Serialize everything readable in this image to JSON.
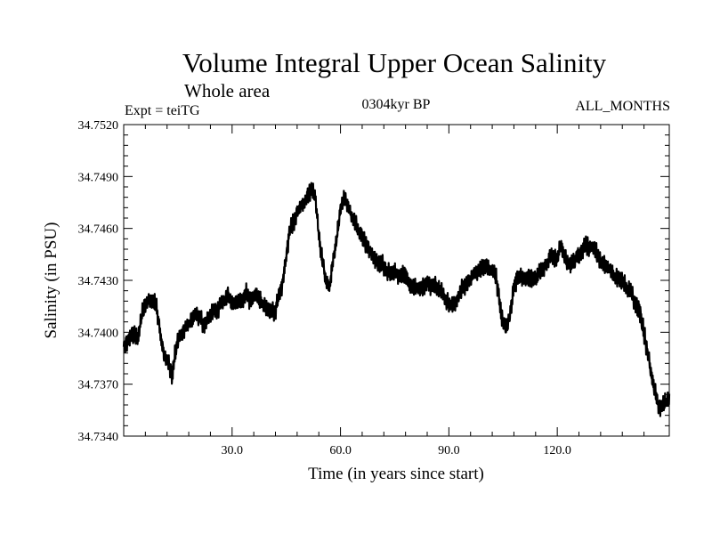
{
  "chart_data": {
    "type": "line",
    "title": "Volume Integral Upper Ocean Salinity",
    "subtitle": "Whole area",
    "experiment": "Expt = teiTG",
    "period": "0304kyr BP",
    "months": "ALL_MONTHS",
    "xlabel": "Time (in years since start)",
    "ylabel": "Salinity (in PSU)",
    "xlim": [
      0,
      151
    ],
    "ylim": [
      34.734,
      34.752
    ],
    "x_ticks": [
      30,
      60,
      90,
      120
    ],
    "x_tick_labels": [
      "30.0",
      "60.0",
      "90.0",
      "120.0"
    ],
    "y_ticks": [
      34.734,
      34.737,
      34.74,
      34.743,
      34.746,
      34.749,
      34.752
    ],
    "y_tick_labels": [
      "34.7340",
      "34.7370",
      "34.7400",
      "34.7430",
      "34.7460",
      "34.7490",
      "34.7520"
    ],
    "grid": false,
    "series": [
      {
        "name": "salinity",
        "color": "#000000",
        "x": [
          0,
          2,
          4,
          5,
          7,
          9,
          10,
          11,
          13,
          13.5,
          14,
          15,
          17,
          18,
          20,
          22,
          25,
          27,
          29,
          30,
          32,
          34,
          35,
          37,
          38,
          40,
          42,
          44,
          45,
          46,
          47,
          48,
          50,
          51,
          52,
          53,
          54,
          55,
          56,
          57,
          58,
          59,
          60,
          61,
          62,
          63,
          65,
          67,
          68,
          70,
          72,
          74,
          76,
          78,
          80,
          82,
          84,
          86,
          88,
          90,
          92,
          94,
          96,
          98,
          100,
          102,
          103,
          104,
          105,
          106,
          107,
          108,
          110,
          112,
          114,
          116,
          118,
          120,
          121,
          122,
          124,
          126,
          128,
          130,
          132,
          134,
          136,
          138,
          140,
          142,
          143,
          144,
          145,
          146,
          147,
          148,
          149,
          150,
          151
        ],
        "values": [
          34.7391,
          34.7398,
          34.7397,
          34.7411,
          34.7419,
          34.7415,
          34.7401,
          34.7388,
          34.7379,
          34.7375,
          34.7385,
          34.7395,
          34.7403,
          34.7404,
          34.7411,
          34.7405,
          34.7412,
          34.7416,
          34.7422,
          34.7416,
          34.7418,
          34.7422,
          34.7419,
          34.7421,
          34.7418,
          34.7412,
          34.7413,
          34.7429,
          34.7444,
          34.7459,
          34.7463,
          34.747,
          34.7474,
          34.748,
          34.7482,
          34.7479,
          34.7456,
          34.7441,
          34.7429,
          34.7426,
          34.7442,
          34.7455,
          34.7472,
          34.7478,
          34.7474,
          34.7468,
          34.7459,
          34.7452,
          34.7447,
          34.7441,
          34.7438,
          34.7434,
          34.7434,
          34.7432,
          34.7426,
          34.7425,
          34.7428,
          34.7427,
          34.7424,
          34.7415,
          34.7418,
          34.7426,
          34.7431,
          34.7436,
          34.7438,
          34.7436,
          34.7433,
          34.7418,
          34.7405,
          34.7403,
          34.7411,
          34.7427,
          34.7433,
          34.7431,
          34.7431,
          34.7436,
          34.7443,
          34.7443,
          34.745,
          34.7443,
          34.7439,
          34.7445,
          34.745,
          34.7449,
          34.7441,
          34.7437,
          34.7432,
          34.743,
          34.7424,
          34.7415,
          34.7411,
          34.7399,
          34.7389,
          34.7376,
          34.7366,
          34.7359,
          34.7357,
          34.7359,
          34.7362
        ]
      }
    ]
  }
}
